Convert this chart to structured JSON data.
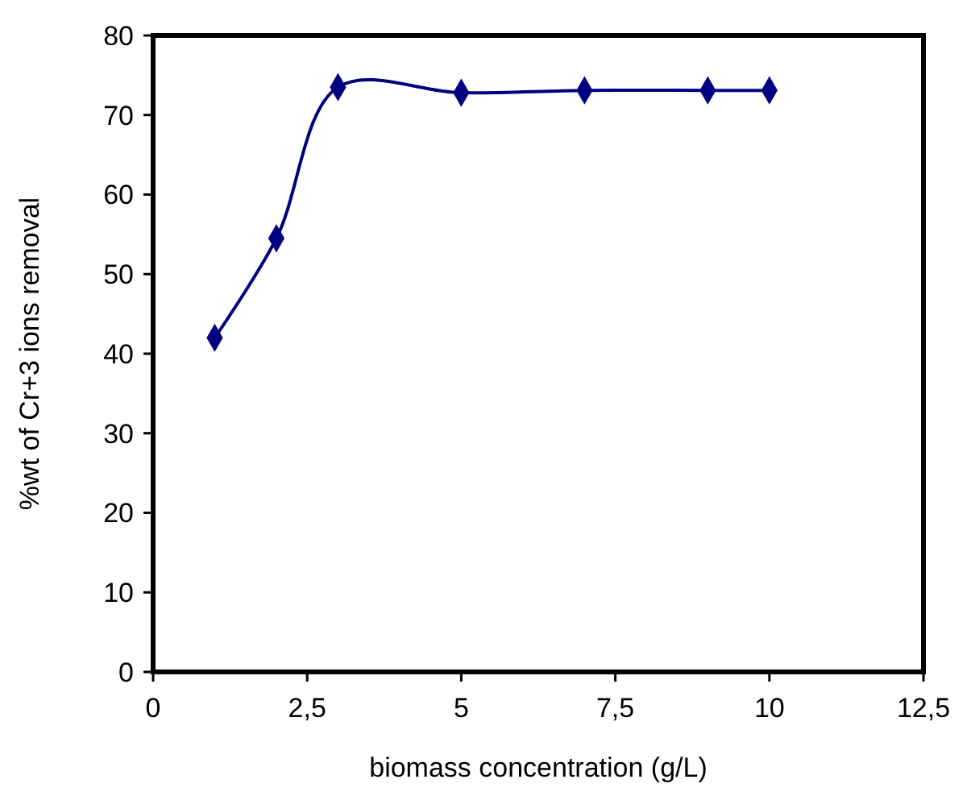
{
  "chart_data": {
    "type": "line",
    "xlabel": "biomass concentration (g/L)",
    "ylabel": "%wt of Cr+3 ions removal",
    "x": [
      1,
      2,
      3,
      5,
      7,
      9,
      10
    ],
    "series": [
      {
        "color": "#000080",
        "values": [
          42,
          54.5,
          73.5,
          72.8,
          73.1,
          73.1,
          73.1
        ]
      }
    ],
    "xlim": [
      0,
      12.5
    ],
    "xticks": [
      0,
      {
        "value": 2.5,
        "label": "2,5"
      },
      5,
      {
        "value": 7.5,
        "label": "7,5"
      },
      10,
      {
        "value": 12.5,
        "label": "12,5"
      }
    ],
    "ylim": [
      0,
      80
    ],
    "yticks": [
      0,
      10,
      20,
      30,
      40,
      50,
      60,
      70,
      80
    ],
    "marker": "diamond",
    "line_style": "solid",
    "grid": false
  }
}
